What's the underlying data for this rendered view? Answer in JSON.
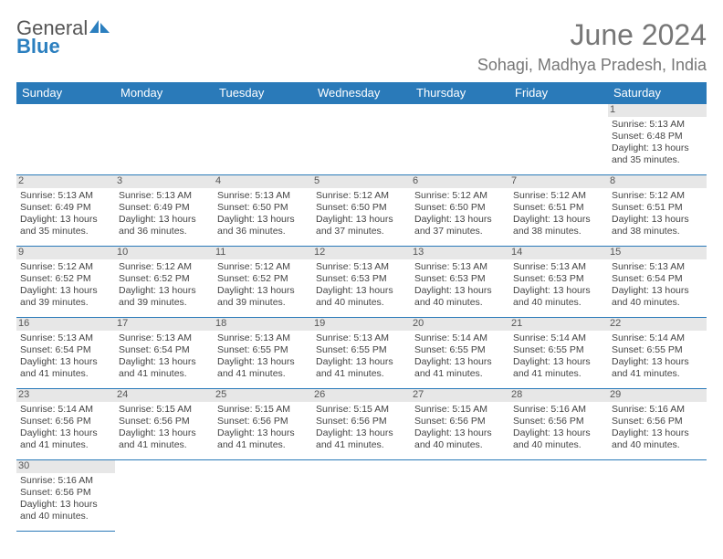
{
  "brand": {
    "name_part1": "General",
    "name_part2": "Blue"
  },
  "header": {
    "month_title": "June 2024",
    "location": "Sohagi, Madhya Pradesh, India"
  },
  "colors": {
    "header_bg": "#2a7ab9",
    "header_text": "#ffffff",
    "day_bg": "#e7e7e7",
    "border": "#2a7ab9",
    "title_color": "#777777",
    "text_color": "#444444"
  },
  "weekdays": [
    "Sunday",
    "Monday",
    "Tuesday",
    "Wednesday",
    "Thursday",
    "Friday",
    "Saturday"
  ],
  "calendar": {
    "first_weekday": 6,
    "days": [
      {
        "d": 1,
        "sr": "5:13 AM",
        "ss": "6:48 PM",
        "dl": "13 hours and 35 minutes."
      },
      {
        "d": 2,
        "sr": "5:13 AM",
        "ss": "6:49 PM",
        "dl": "13 hours and 35 minutes."
      },
      {
        "d": 3,
        "sr": "5:13 AM",
        "ss": "6:49 PM",
        "dl": "13 hours and 36 minutes."
      },
      {
        "d": 4,
        "sr": "5:13 AM",
        "ss": "6:50 PM",
        "dl": "13 hours and 36 minutes."
      },
      {
        "d": 5,
        "sr": "5:12 AM",
        "ss": "6:50 PM",
        "dl": "13 hours and 37 minutes."
      },
      {
        "d": 6,
        "sr": "5:12 AM",
        "ss": "6:50 PM",
        "dl": "13 hours and 37 minutes."
      },
      {
        "d": 7,
        "sr": "5:12 AM",
        "ss": "6:51 PM",
        "dl": "13 hours and 38 minutes."
      },
      {
        "d": 8,
        "sr": "5:12 AM",
        "ss": "6:51 PM",
        "dl": "13 hours and 38 minutes."
      },
      {
        "d": 9,
        "sr": "5:12 AM",
        "ss": "6:52 PM",
        "dl": "13 hours and 39 minutes."
      },
      {
        "d": 10,
        "sr": "5:12 AM",
        "ss": "6:52 PM",
        "dl": "13 hours and 39 minutes."
      },
      {
        "d": 11,
        "sr": "5:12 AM",
        "ss": "6:52 PM",
        "dl": "13 hours and 39 minutes."
      },
      {
        "d": 12,
        "sr": "5:13 AM",
        "ss": "6:53 PM",
        "dl": "13 hours and 40 minutes."
      },
      {
        "d": 13,
        "sr": "5:13 AM",
        "ss": "6:53 PM",
        "dl": "13 hours and 40 minutes."
      },
      {
        "d": 14,
        "sr": "5:13 AM",
        "ss": "6:53 PM",
        "dl": "13 hours and 40 minutes."
      },
      {
        "d": 15,
        "sr": "5:13 AM",
        "ss": "6:54 PM",
        "dl": "13 hours and 40 minutes."
      },
      {
        "d": 16,
        "sr": "5:13 AM",
        "ss": "6:54 PM",
        "dl": "13 hours and 41 minutes."
      },
      {
        "d": 17,
        "sr": "5:13 AM",
        "ss": "6:54 PM",
        "dl": "13 hours and 41 minutes."
      },
      {
        "d": 18,
        "sr": "5:13 AM",
        "ss": "6:55 PM",
        "dl": "13 hours and 41 minutes."
      },
      {
        "d": 19,
        "sr": "5:13 AM",
        "ss": "6:55 PM",
        "dl": "13 hours and 41 minutes."
      },
      {
        "d": 20,
        "sr": "5:14 AM",
        "ss": "6:55 PM",
        "dl": "13 hours and 41 minutes."
      },
      {
        "d": 21,
        "sr": "5:14 AM",
        "ss": "6:55 PM",
        "dl": "13 hours and 41 minutes."
      },
      {
        "d": 22,
        "sr": "5:14 AM",
        "ss": "6:55 PM",
        "dl": "13 hours and 41 minutes."
      },
      {
        "d": 23,
        "sr": "5:14 AM",
        "ss": "6:56 PM",
        "dl": "13 hours and 41 minutes."
      },
      {
        "d": 24,
        "sr": "5:15 AM",
        "ss": "6:56 PM",
        "dl": "13 hours and 41 minutes."
      },
      {
        "d": 25,
        "sr": "5:15 AM",
        "ss": "6:56 PM",
        "dl": "13 hours and 41 minutes."
      },
      {
        "d": 26,
        "sr": "5:15 AM",
        "ss": "6:56 PM",
        "dl": "13 hours and 41 minutes."
      },
      {
        "d": 27,
        "sr": "5:15 AM",
        "ss": "6:56 PM",
        "dl": "13 hours and 40 minutes."
      },
      {
        "d": 28,
        "sr": "5:16 AM",
        "ss": "6:56 PM",
        "dl": "13 hours and 40 minutes."
      },
      {
        "d": 29,
        "sr": "5:16 AM",
        "ss": "6:56 PM",
        "dl": "13 hours and 40 minutes."
      },
      {
        "d": 30,
        "sr": "5:16 AM",
        "ss": "6:56 PM",
        "dl": "13 hours and 40 minutes."
      }
    ]
  },
  "labels": {
    "sunrise": "Sunrise:",
    "sunset": "Sunset:",
    "daylight": "Daylight:"
  }
}
